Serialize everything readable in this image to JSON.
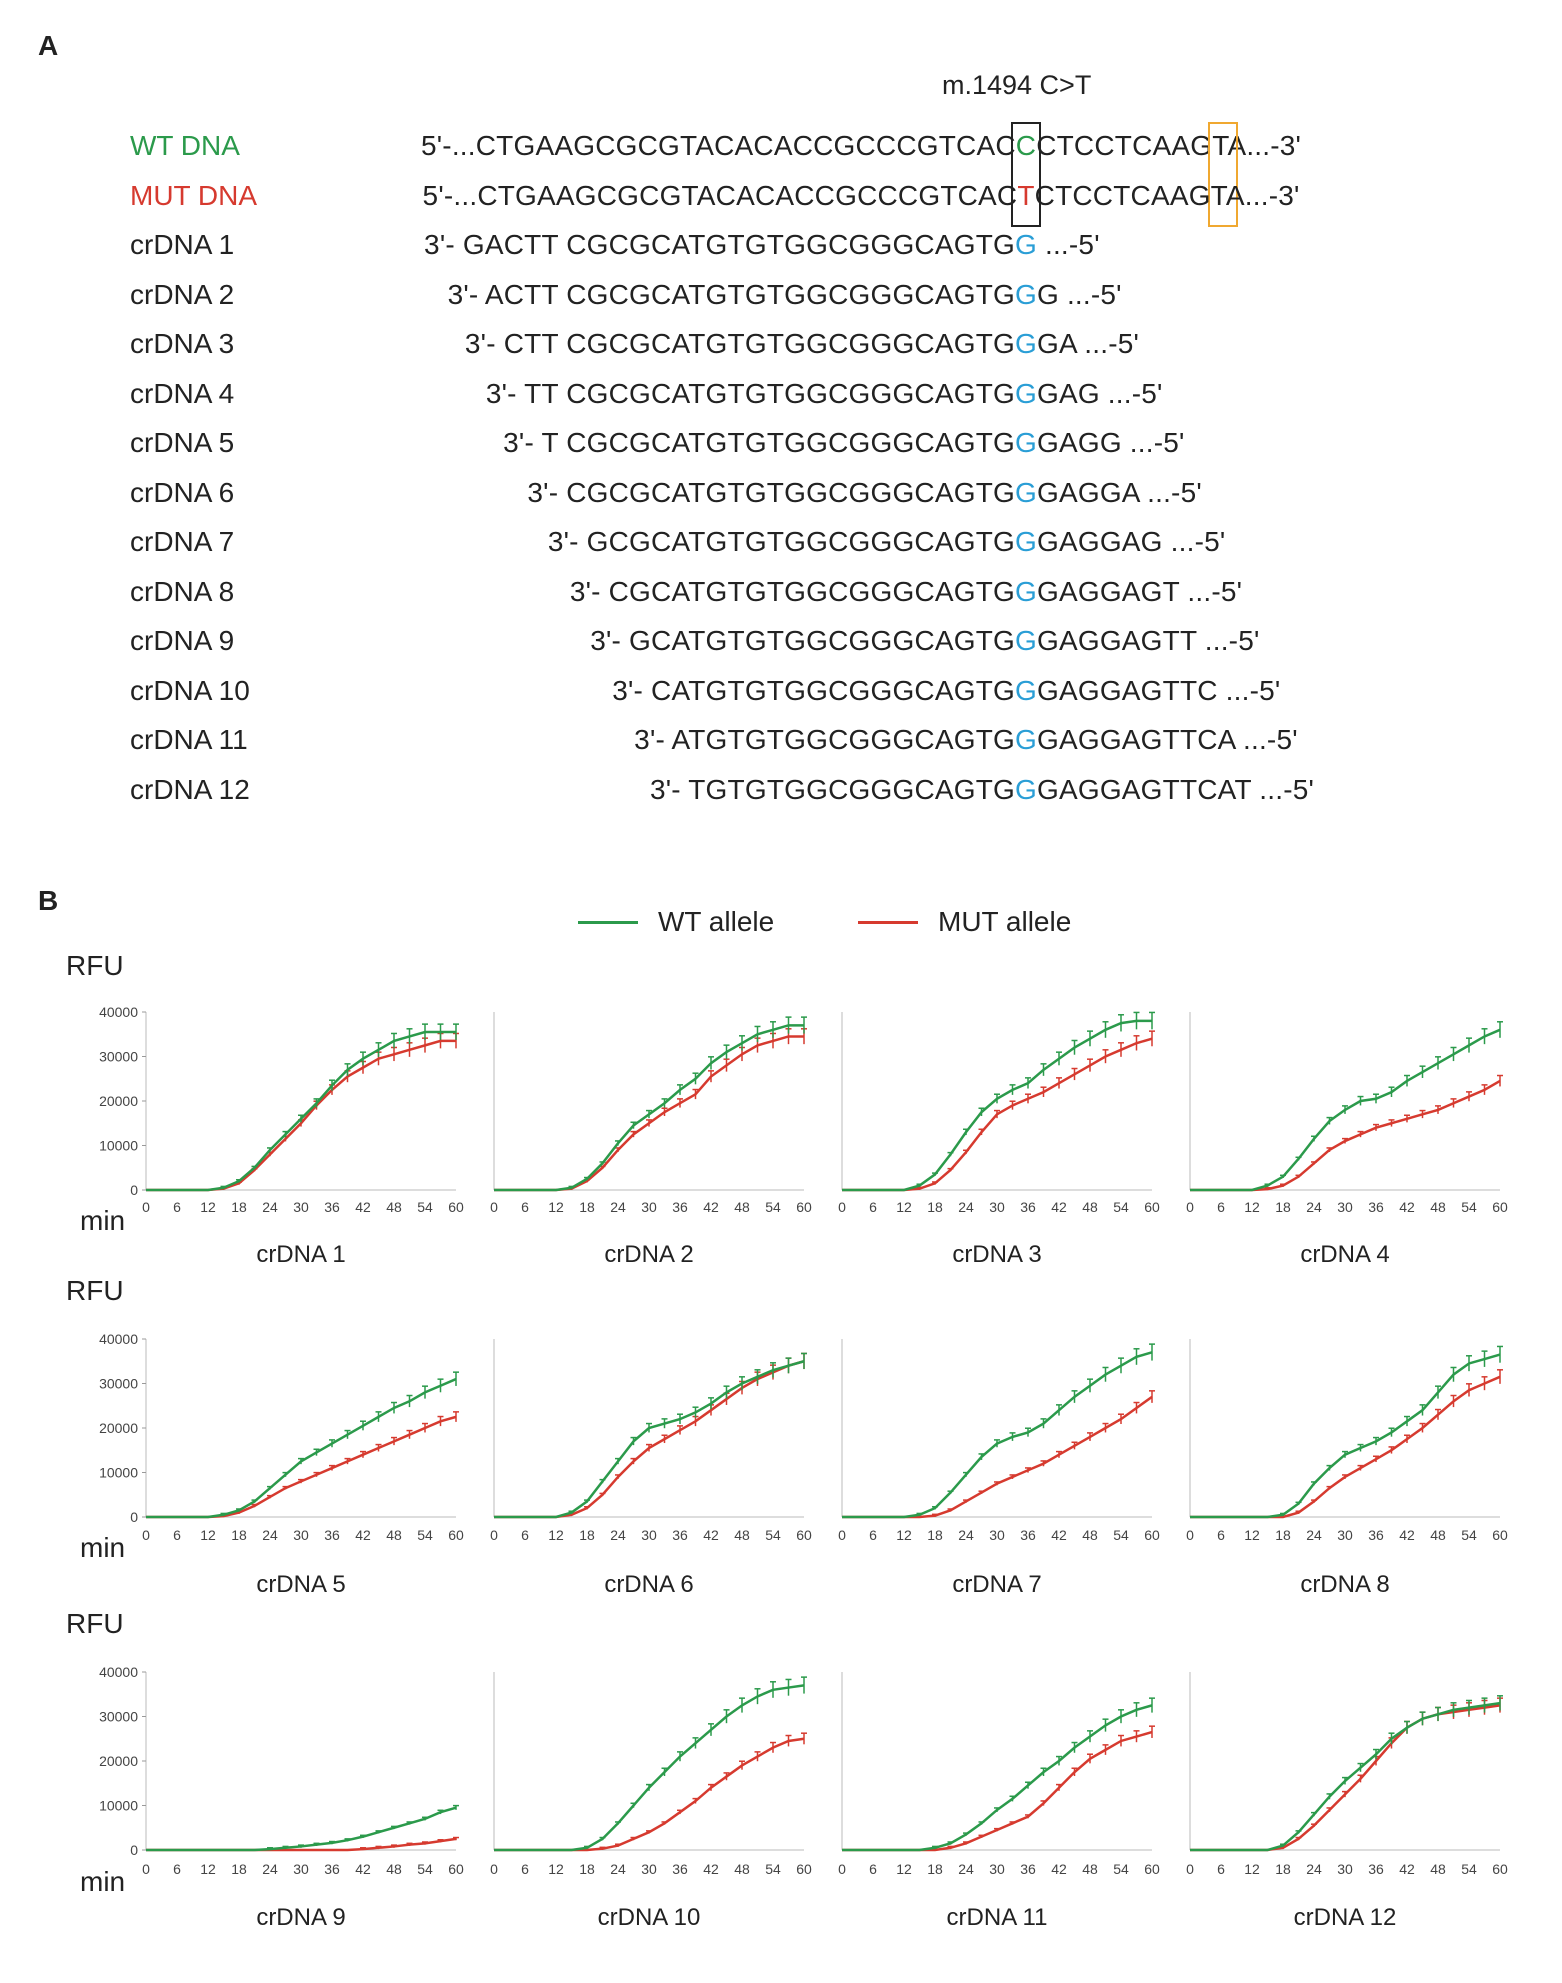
{
  "panel_a_label": "A",
  "panel_b_label": "B",
  "mutation_label": "m.1494 C>T",
  "sequences": [
    {
      "label": "WT DNA",
      "pre": "5'-...CTGAAGCGCGTACACACCGCCCGTCAC",
      "hl": "C",
      "post": "CTCCTCAAGTA...-3'",
      "label_color": "#2b9a4b",
      "hl_color": "#2b9a4b"
    },
    {
      "label": "MUT DNA",
      "pre": "5'-...CTGAAGCGCGTACACACCGCCCGTCAC",
      "hl": "T",
      "post": "CTCCTCAAGTA...-3'",
      "label_color": "#d63a2f",
      "hl_color": "#d63a2f"
    },
    {
      "label": "crDNA 1",
      "pre": "3'- GACTT CGCGCATGTGTGGCGGGCAGTG",
      "hl": "G",
      "post": " ...-5'"
    },
    {
      "label": "crDNA 2",
      "pre": "3'- ACTT CGCGCATGTGTGGCGGGCAGTG",
      "hl": "G",
      "post": "G ...-5'"
    },
    {
      "label": "crDNA 3",
      "pre": "3'- CTT CGCGCATGTGTGGCGGGCAGTG",
      "hl": "G",
      "post": "GA ...-5'"
    },
    {
      "label": "crDNA 4",
      "pre": "3'- TT CGCGCATGTGTGGCGGGCAGTG",
      "hl": "G",
      "post": "GAG ...-5'"
    },
    {
      "label": "crDNA 5",
      "pre": "3'- T CGCGCATGTGTGGCGGGCAGTG",
      "hl": "G",
      "post": "GAGG ...-5'"
    },
    {
      "label": "crDNA 6",
      "pre": "3'- CGCGCATGTGTGGCGGGCAGTG",
      "hl": "G",
      "post": "GAGGA ...-5'"
    },
    {
      "label": "crDNA 7",
      "pre": "3'- GCGCATGTGTGGCGGGCAGTG",
      "hl": "G",
      "post": "GAGGAG ...-5'"
    },
    {
      "label": "crDNA 8",
      "pre": "3'- CGCATGTGTGGCGGGCAGTG",
      "hl": "G",
      "post": "GAGGAGT ...-5'"
    },
    {
      "label": "crDNA 9",
      "pre": "3'- GCATGTGTGGCGGGCAGTG",
      "hl": "G",
      "post": "GAGGAGTT ...-5'"
    },
    {
      "label": "crDNA 10",
      "pre": "3'- CATGTGTGGCGGGCAGTG",
      "hl": "G",
      "post": "GAGGAGTTC ...-5'"
    },
    {
      "label": "crDNA 11",
      "pre": "3'- ATGTGTGGCGGGCAGTG",
      "hl": "G",
      "post": "GAGGAGTTCA ...-5'"
    },
    {
      "label": "crDNA 12",
      "pre": "3'- TGTGTGGCGGGCAGTG",
      "hl": "G",
      "post": "GAGGAGTTCAT ...-5'"
    }
  ],
  "legend": {
    "wt": "WT allele",
    "mut": "MUT allele",
    "wt_color": "#2b9a4b",
    "mut_color": "#d63a2f"
  },
  "rfu_label": "RFU",
  "min_label": "min",
  "chart_data": {
    "type": "line",
    "xlabel": "min",
    "ylabel": "RFU",
    "x": [
      0,
      3,
      6,
      9,
      12,
      15,
      18,
      21,
      24,
      27,
      30,
      33,
      36,
      39,
      42,
      45,
      48,
      51,
      54,
      57,
      60
    ],
    "x_ticks": [
      0,
      6,
      12,
      18,
      24,
      30,
      36,
      42,
      48,
      54,
      60
    ],
    "y_ticks": [
      0,
      10000,
      20000,
      30000,
      40000
    ],
    "ylim": [
      0,
      40000
    ],
    "panels": [
      {
        "title": "crDNA 1",
        "wt": [
          0,
          0,
          0,
          0,
          0,
          500,
          2000,
          5000,
          9000,
          12500,
          16000,
          19500,
          23500,
          27000,
          29500,
          31500,
          33500,
          34500,
          35500,
          35500,
          35500
        ],
        "mut": [
          0,
          0,
          0,
          0,
          0,
          300,
          1500,
          4500,
          8000,
          11500,
          15000,
          19000,
          22500,
          25500,
          27500,
          29500,
          30500,
          31500,
          32500,
          33500,
          33500
        ]
      },
      {
        "title": "crDNA 2",
        "wt": [
          0,
          0,
          0,
          0,
          0,
          500,
          2500,
          6000,
          10500,
          14500,
          17000,
          19500,
          22500,
          25000,
          28500,
          31000,
          33000,
          35000,
          36000,
          37000,
          37000
        ],
        "mut": [
          0,
          0,
          0,
          0,
          0,
          300,
          2000,
          5000,
          9000,
          12500,
          15000,
          17500,
          19500,
          21500,
          25500,
          28000,
          30500,
          32500,
          33500,
          34500,
          34500
        ]
      },
      {
        "title": "crDNA 3",
        "wt": [
          0,
          0,
          0,
          0,
          0,
          1000,
          3500,
          8000,
          13000,
          17500,
          20500,
          22500,
          24000,
          27000,
          29500,
          32000,
          34000,
          36000,
          37500,
          38000,
          38000
        ],
        "mut": [
          0,
          0,
          0,
          0,
          0,
          300,
          1500,
          4500,
          8500,
          13000,
          17000,
          19000,
          20500,
          22000,
          24000,
          26000,
          28000,
          30000,
          31500,
          33000,
          34000
        ]
      },
      {
        "title": "crDNA 4",
        "wt": [
          0,
          0,
          0,
          0,
          0,
          1000,
          3000,
          7000,
          11500,
          15500,
          18000,
          20000,
          20500,
          22000,
          24500,
          26500,
          28500,
          30500,
          32500,
          34500,
          36000
        ],
        "mut": [
          0,
          0,
          0,
          0,
          0,
          200,
          1000,
          3000,
          6000,
          9000,
          11000,
          12500,
          14000,
          15000,
          16000,
          17000,
          18000,
          19500,
          21000,
          22500,
          24500
        ]
      },
      {
        "title": "crDNA 5",
        "wt": [
          0,
          0,
          0,
          0,
          0,
          500,
          1500,
          3500,
          6500,
          9500,
          12500,
          14500,
          16500,
          18500,
          20500,
          22500,
          24500,
          26000,
          28000,
          29500,
          31000
        ],
        "mut": [
          0,
          0,
          0,
          0,
          0,
          200,
          1000,
          2500,
          4500,
          6500,
          8000,
          9500,
          11000,
          12500,
          14000,
          15500,
          17000,
          18500,
          20000,
          21500,
          22500
        ]
      },
      {
        "title": "crDNA 6",
        "wt": [
          0,
          0,
          0,
          0,
          0,
          1000,
          3500,
          8000,
          12500,
          17000,
          20000,
          21000,
          22000,
          23500,
          25500,
          28000,
          30000,
          31500,
          33000,
          34000,
          35000
        ],
        "mut": [
          0,
          0,
          0,
          0,
          0,
          500,
          2000,
          5000,
          9000,
          12500,
          15500,
          17500,
          19500,
          21500,
          24000,
          26500,
          29000,
          31000,
          32500,
          34000,
          35000
        ]
      },
      {
        "title": "crDNA 7",
        "wt": [
          0,
          0,
          0,
          0,
          0,
          500,
          2000,
          5500,
          9500,
          13500,
          16500,
          18000,
          19000,
          21000,
          24000,
          27000,
          29500,
          32000,
          34000,
          36000,
          37000
        ],
        "mut": [
          0,
          0,
          0,
          0,
          0,
          0,
          300,
          1500,
          3500,
          5500,
          7500,
          9000,
          10500,
          12000,
          14000,
          16000,
          18000,
          20000,
          22000,
          24500,
          27000
        ]
      },
      {
        "title": "crDNA 8",
        "wt": [
          0,
          0,
          0,
          0,
          0,
          0,
          500,
          3000,
          7500,
          11000,
          14000,
          15500,
          17000,
          19000,
          21500,
          24000,
          28000,
          32000,
          34500,
          35500,
          36500
        ],
        "mut": [
          0,
          0,
          0,
          0,
          0,
          0,
          0,
          1000,
          3500,
          6500,
          9000,
          11000,
          13000,
          15000,
          17500,
          20000,
          23000,
          26000,
          28500,
          30000,
          31500
        ]
      },
      {
        "title": "crDNA 9",
        "wt": [
          0,
          0,
          0,
          0,
          0,
          0,
          0,
          0,
          200,
          500,
          800,
          1200,
          1600,
          2200,
          3000,
          4000,
          5000,
          6000,
          7000,
          8500,
          9500
        ],
        "mut": [
          0,
          0,
          0,
          0,
          0,
          0,
          0,
          0,
          0,
          0,
          0,
          0,
          0,
          0,
          200,
          500,
          800,
          1200,
          1500,
          2000,
          2500
        ]
      },
      {
        "title": "crDNA 10",
        "wt": [
          0,
          0,
          0,
          0,
          0,
          0,
          500,
          2500,
          6000,
          10000,
          14000,
          17500,
          21000,
          24000,
          27000,
          30000,
          32500,
          34500,
          36000,
          36500,
          37000
        ],
        "mut": [
          0,
          0,
          0,
          0,
          0,
          0,
          0,
          300,
          1000,
          2500,
          4000,
          6000,
          8500,
          11000,
          14000,
          16500,
          19000,
          21000,
          23000,
          24500,
          25000
        ]
      },
      {
        "title": "crDNA 11",
        "wt": [
          0,
          0,
          0,
          0,
          0,
          0,
          500,
          1500,
          3500,
          6000,
          9000,
          11500,
          14500,
          17500,
          20000,
          23000,
          25500,
          28000,
          30000,
          31500,
          32500
        ],
        "mut": [
          0,
          0,
          0,
          0,
          0,
          0,
          0,
          500,
          1500,
          3000,
          4500,
          6000,
          7500,
          10500,
          14000,
          17500,
          20500,
          22500,
          24500,
          25500,
          26500
        ]
      },
      {
        "title": "crDNA 12",
        "wt": [
          0,
          0,
          0,
          0,
          0,
          0,
          1000,
          4000,
          8000,
          12000,
          15500,
          18500,
          21500,
          25000,
          27500,
          29500,
          30500,
          31500,
          32000,
          32500,
          33000
        ],
        "mut": [
          0,
          0,
          0,
          0,
          0,
          0,
          500,
          2500,
          5500,
          9000,
          12500,
          16000,
          20000,
          24000,
          27500,
          29500,
          30500,
          31000,
          31500,
          32000,
          32500
        ]
      }
    ]
  }
}
